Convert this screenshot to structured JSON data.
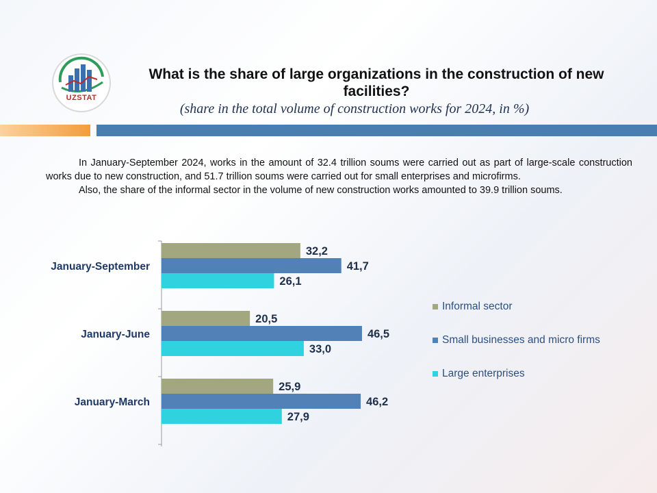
{
  "header": {
    "logo_text": "UZSTAT",
    "title": "What is the share of large organizations in the construction of new facilities?",
    "subtitle": "(share in the total volume of construction works for 2024, in %)"
  },
  "intro": {
    "p1": "In January-September 2024, works in the amount of 32.4 trillion soums were carried out as part of large-scale construction works due to new construction, and 51.7 trillion soums were carried out for small enterprises and microfirms.",
    "p2": "Also, the share of the informal sector in the volume of new construction works amounted to 39.9 trillion soums."
  },
  "colors": {
    "informal": "#a3a77f",
    "small": "#5281b8",
    "large": "#2fd2de"
  },
  "chart_data": {
    "type": "bar",
    "orientation": "horizontal",
    "categories": [
      "January-September",
      "January-June",
      "January-March"
    ],
    "series": [
      {
        "name": "Informal sector",
        "values": [
          32.2,
          20.5,
          25.9
        ],
        "labels": [
          "32,2",
          "20,5",
          "25,9"
        ]
      },
      {
        "name": "Small businesses and micro firms",
        "values": [
          41.7,
          46.5,
          46.2
        ],
        "labels": [
          "41,7",
          "46,5",
          "46,2"
        ]
      },
      {
        "name": "Large enterprises",
        "values": [
          26.1,
          33.0,
          27.9
        ],
        "labels": [
          "26,1",
          "33,0",
          "27,9"
        ]
      }
    ],
    "xlim": [
      0,
      100
    ],
    "legend_position": "right",
    "grid": false
  }
}
